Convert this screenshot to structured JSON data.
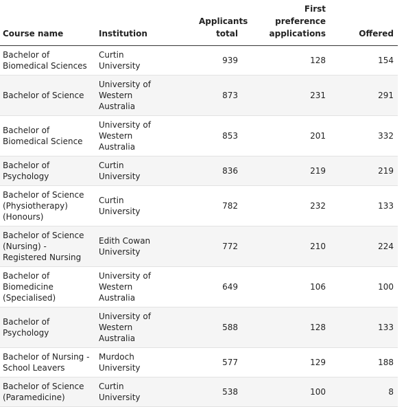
{
  "table": {
    "header": [
      "Course name",
      "Institution",
      "Applicants total",
      "First preference applications",
      "Offered"
    ],
    "rows": [
      [
        "Bachelor of Biomedical Sciences",
        "Curtin University",
        939,
        128,
        154
      ],
      [
        "Bachelor of Science",
        "University of Western Australia",
        873,
        231,
        291
      ],
      [
        "Bachelor of Biomedical Science",
        "University of Western Australia",
        853,
        201,
        332
      ],
      [
        "Bachelor of Psychology",
        "Curtin University",
        836,
        219,
        219
      ],
      [
        "Bachelor of Science (Physiotherapy) (Honours)",
        "Curtin University",
        782,
        232,
        133
      ],
      [
        "Bachelor of Science (Nursing) - Registered Nursing",
        "Edith Cowan University",
        772,
        210,
        224
      ],
      [
        "Bachelor of Biomedicine (Specialised)",
        "University of Western Australia",
        649,
        106,
        100
      ],
      [
        "Bachelor of Psychology",
        "University of Western Australia",
        588,
        128,
        133
      ],
      [
        "Bachelor of Nursing - School Leavers",
        "Murdoch University",
        577,
        129,
        188
      ],
      [
        "Bachelor of Science (Paramedicine)",
        "Curtin University",
        538,
        100,
        8
      ]
    ]
  }
}
